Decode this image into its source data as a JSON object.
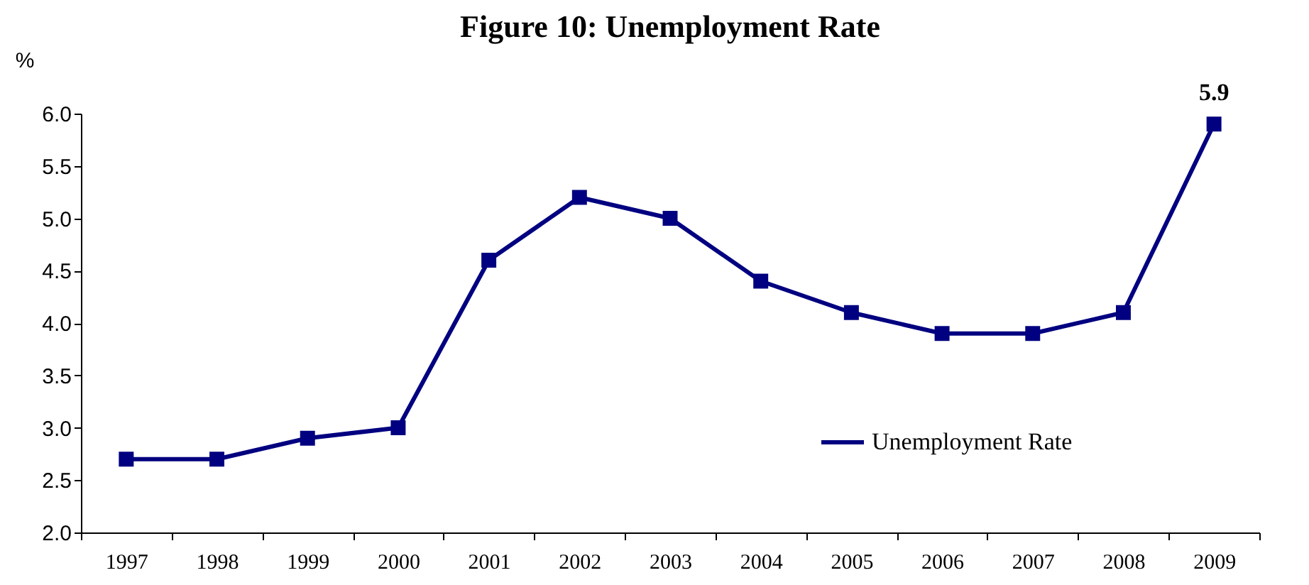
{
  "chart_data": {
    "type": "line",
    "title": "Figure 10: Unemployment Rate",
    "ylabel": "%",
    "categories": [
      "1997",
      "1998",
      "1999",
      "2000",
      "2001",
      "2002",
      "2003",
      "2004",
      "2005",
      "2006",
      "2007",
      "2008",
      "2009"
    ],
    "series": [
      {
        "name": "Unemployment Rate",
        "color": "#000080",
        "values": [
          2.7,
          2.7,
          2.9,
          3.0,
          4.6,
          5.2,
          5.0,
          4.4,
          4.1,
          3.9,
          3.9,
          4.1,
          5.9
        ],
        "value_labels": [
          null,
          null,
          null,
          null,
          null,
          null,
          null,
          null,
          null,
          null,
          null,
          null,
          "5.9"
        ]
      }
    ],
    "ylim": [
      2.0,
      6.0
    ],
    "yticks": [
      {
        "value": 2,
        "label": "2.0"
      },
      {
        "value": 2.5,
        "label": "2.5"
      },
      {
        "value": 3,
        "label": "3.0"
      },
      {
        "value": 3.5,
        "label": "3.5"
      },
      {
        "value": 4,
        "label": "4.0"
      },
      {
        "value": 4.5,
        "label": "4.5"
      },
      {
        "value": 5,
        "label": "5.0"
      },
      {
        "value": 5.5,
        "label": "5.5"
      },
      {
        "value": 6,
        "label": "6.0"
      }
    ],
    "grid": false,
    "legend": "bottom right",
    "marker": "square",
    "line_style": "solid"
  }
}
